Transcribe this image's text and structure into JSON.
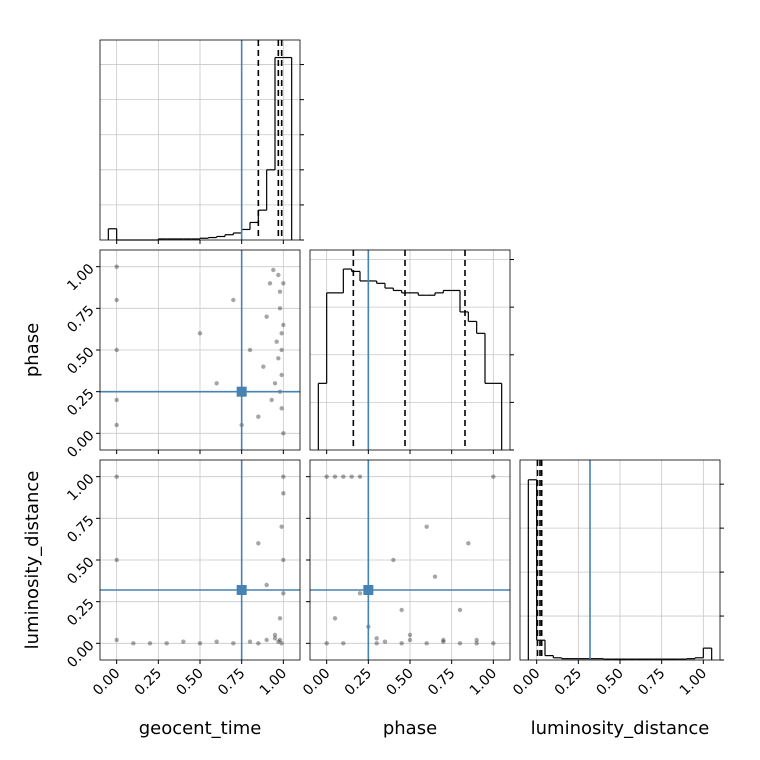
{
  "chart_data": [
    {
      "type": "histogram",
      "color": "#000000",
      "truth_color": "#4682b4",
      "grid": true,
      "bins": [
        -0.05,
        0,
        0.05,
        0.1,
        0.15,
        0.2,
        0.25,
        0.3,
        0.35,
        0.4,
        0.45,
        0.5,
        0.55,
        0.6,
        0.65,
        0.7,
        0.75,
        0.8,
        0.85,
        0.9,
        0.95,
        1,
        1.05
      ],
      "counts": [
        0.32,
        0,
        0,
        0,
        0,
        0,
        0.03,
        0.03,
        0.03,
        0.03,
        0.03,
        0.05,
        0.07,
        0.1,
        0.15,
        0.2,
        0.3,
        0.5,
        0.85,
        2,
        5.2,
        5.2
      ],
      "quantiles": [
        0.85,
        0.97,
        0.99
      ],
      "truth": 0.75,
      "xlim": [
        -0.1,
        1.1
      ],
      "xticks": [
        0,
        0.25,
        0.5,
        0.75,
        1
      ],
      "ylim": [
        0,
        5.7
      ],
      "yticks": [
        0,
        1,
        2,
        3,
        4,
        5
      ]
    },
    {
      "type": "scatter",
      "color": "#000000",
      "truth_color": "#4682b4",
      "grid": true,
      "ylabel": "phase",
      "x": [
        0,
        0,
        0,
        0,
        0,
        1,
        0.98,
        0.99,
        0.97,
        0.95,
        0.99,
        1,
        0.98,
        0.96,
        0.93,
        0.9,
        0.88,
        0.99,
        0.97,
        1,
        0.85,
        0.8,
        0.7,
        0.6,
        0.92,
        0.99,
        0.98,
        0.5,
        0.75,
        0.94
      ],
      "y": [
        1,
        0.8,
        0.5,
        0.2,
        0.05,
        0.9,
        0.75,
        0.6,
        0.45,
        0.3,
        0.15,
        0,
        0.85,
        0.55,
        0.2,
        0.7,
        0.4,
        0.35,
        0.95,
        0.65,
        0.1,
        0.5,
        0.8,
        0.3,
        0.9,
        0.5,
        0.25,
        0.6,
        0.05,
        0.98
      ],
      "truth": [
        0.75,
        0.25
      ],
      "xlim": [
        -0.1,
        1.1
      ],
      "xticks": [
        0,
        0.25,
        0.5,
        0.75,
        1
      ],
      "ylim": [
        -0.1,
        1.1
      ],
      "yticks": [
        {
          "value": 0,
          "label": "0.00"
        },
        {
          "value": 0.25,
          "label": "0.25"
        },
        {
          "value": 0.5,
          "label": "0.50"
        },
        {
          "value": 0.75,
          "label": "0.75"
        },
        {
          "value": 1,
          "label": "1.00"
        }
      ]
    },
    {
      "type": "histogram",
      "color": "#000000",
      "truth_color": "#4682b4",
      "grid": true,
      "bins": [
        -0.05,
        0,
        0.05,
        0.1,
        0.15,
        0.2,
        0.25,
        0.3,
        0.35,
        0.4,
        0.45,
        0.5,
        0.55,
        0.6,
        0.65,
        0.7,
        0.75,
        0.8,
        0.85,
        0.9,
        0.95,
        1,
        1.05
      ],
      "counts": [
        1.4,
        3.3,
        3.3,
        3.8,
        3.75,
        3.55,
        3.55,
        3.5,
        3.4,
        3.35,
        3.3,
        3.3,
        3.25,
        3.25,
        3.3,
        3.35,
        3.35,
        2.9,
        2.7,
        2.45,
        1.4,
        1.4
      ],
      "quantiles": [
        0.16,
        0.47,
        0.83
      ],
      "truth": 0.25,
      "xlim": [
        -0.1,
        1.1
      ],
      "xticks": [
        0,
        0.25,
        0.5,
        0.75,
        1
      ],
      "ylim": [
        0,
        4.2
      ],
      "yticks": [
        0,
        1,
        2,
        3,
        4
      ]
    },
    {
      "type": "scatter",
      "color": "#000000",
      "truth_color": "#4682b4",
      "grid": true,
      "xlabel": "geocent_time",
      "ylabel": "luminosity_distance",
      "x": [
        0,
        0,
        0,
        1,
        0.99,
        0.98,
        1,
        0.97,
        0.95,
        0.9,
        0.85,
        0.8,
        0.7,
        0.6,
        0.5,
        0.4,
        0.3,
        0.2,
        0.1,
        1,
        0.99,
        0.98,
        0.95,
        0.9,
        1,
        0.85
      ],
      "y": [
        1,
        0.02,
        0.5,
        1,
        0,
        0.02,
        0.5,
        0.01,
        0.03,
        0.02,
        0,
        0.01,
        0,
        0.01,
        0,
        0.01,
        0,
        0,
        0,
        0.3,
        0.7,
        0.15,
        0.05,
        0.35,
        0.9,
        0.6
      ],
      "truth": [
        0.75,
        0.32
      ],
      "xlim": [
        -0.1,
        1.1
      ],
      "xticks": [
        {
          "value": 0,
          "label": "0.00"
        },
        {
          "value": 0.25,
          "label": "0.25"
        },
        {
          "value": 0.5,
          "label": "0.50"
        },
        {
          "value": 0.75,
          "label": "0.75"
        },
        {
          "value": 1,
          "label": "1.00"
        }
      ],
      "ylim": [
        -0.1,
        1.1
      ],
      "yticks": [
        {
          "value": 0,
          "label": "0.00"
        },
        {
          "value": 0.25,
          "label": "0.25"
        },
        {
          "value": 0.5,
          "label": "0.50"
        },
        {
          "value": 0.75,
          "label": "0.75"
        },
        {
          "value": 1,
          "label": "1.00"
        }
      ]
    },
    {
      "type": "scatter",
      "color": "#000000",
      "truth_color": "#4682b4",
      "grid": true,
      "xlabel": "phase",
      "x": [
        0,
        0.05,
        0.1,
        0.15,
        0.2,
        0.3,
        0.35,
        0.45,
        0.5,
        0.6,
        0.7,
        0.8,
        0.9,
        1,
        0.1,
        0.3,
        0.5,
        0.7,
        0.9,
        0.2,
        0.4,
        0.6,
        0.8,
        0.05,
        0.25,
        0.45,
        0.65,
        0.85,
        1,
        0
      ],
      "y": [
        1,
        1,
        1,
        1,
        1,
        0,
        0.01,
        0,
        0.02,
        0,
        0.01,
        0,
        0.02,
        1,
        0,
        0.03,
        0.05,
        0.02,
        0,
        0.3,
        0.5,
        0.7,
        0.2,
        0.15,
        0.1,
        0.2,
        0.4,
        0.6,
        0,
        0
      ],
      "truth": [
        0.25,
        0.32
      ],
      "xlim": [
        -0.1,
        1.1
      ],
      "xticks": [
        {
          "value": 0,
          "label": "0.00"
        },
        {
          "value": 0.25,
          "label": "0.25"
        },
        {
          "value": 0.5,
          "label": "0.50"
        },
        {
          "value": 0.75,
          "label": "0.75"
        },
        {
          "value": 1,
          "label": "1.00"
        }
      ],
      "ylim": [
        -0.1,
        1.1
      ],
      "yticks": [
        0,
        0.25,
        0.5,
        0.75,
        1
      ]
    },
    {
      "type": "histogram",
      "color": "#000000",
      "truth_color": "#4682b4",
      "grid": true,
      "xlabel": "luminosity_distance",
      "bins": [
        -0.05,
        0,
        0.05,
        0.1,
        0.15,
        0.2,
        0.25,
        0.3,
        0.35,
        0.4,
        0.45,
        0.5,
        0.55,
        0.6,
        0.65,
        0.7,
        0.75,
        0.8,
        0.85,
        0.9,
        0.95,
        1,
        1.05
      ],
      "counts": [
        4.1,
        0.45,
        0.1,
        0.05,
        0.03,
        0.03,
        0.03,
        0.03,
        0.03,
        0.02,
        0.02,
        0.02,
        0.02,
        0.02,
        0.02,
        0.02,
        0.02,
        0.02,
        0.02,
        0.03,
        0.05,
        0.27
      ],
      "quantiles": [
        0.005,
        0.02,
        0.03
      ],
      "truth": 0.32,
      "xlim": [
        -0.1,
        1.1
      ],
      "xticks": [
        {
          "value": 0,
          "label": "0.00"
        },
        {
          "value": 0.25,
          "label": "0.25"
        },
        {
          "value": 0.5,
          "label": "0.50"
        },
        {
          "value": 0.75,
          "label": "0.75"
        },
        {
          "value": 1,
          "label": "1.00"
        }
      ],
      "ylim": [
        0,
        4.55
      ],
      "yticks": [
        0,
        1,
        2,
        3,
        4
      ]
    }
  ]
}
